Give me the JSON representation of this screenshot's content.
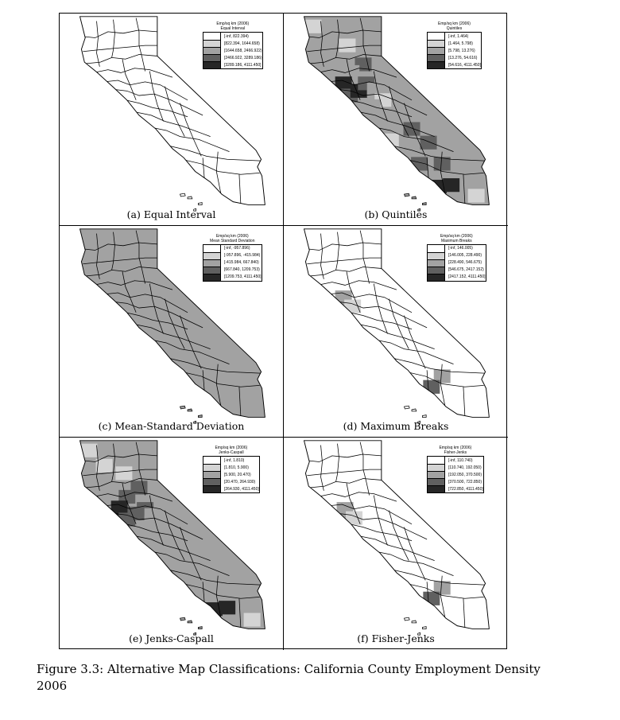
{
  "figure_caption": "Figure 3.3: Alternative Map Classifications: California County Employment Density 2006",
  "legend_title": "Emp/sq km (2006)",
  "colors": [
    "#ffffff",
    "#d4d4d4",
    "#a2a2a2",
    "#606060",
    "#262626"
  ],
  "panels": [
    {
      "caption": "(a) Equal Interval",
      "legend_subtitle": "Equal Interval",
      "legend_title": "Emp/sq km (2006)",
      "classes": [
        "[-inf, 822.394)",
        "[822.394, 1644.658)",
        "[1644.658, 2466.922)",
        "[2466.922, 3289.186)",
        "[3289.186, 4111.450]"
      ],
      "map_shading": "nearly all counties in lowest class"
    },
    {
      "caption": "(b) Quintiles",
      "legend_subtitle": "Quintiles",
      "legend_title": "Emp/sq km (2006)",
      "classes": [
        "[-inf, 1.464)",
        "[1.464, 5.798)",
        "[5.798, 13.276)",
        "[13.276, 54.616)",
        "[54.616, 4111.450]"
      ],
      "map_shading": "counties spread across all five classes"
    },
    {
      "caption": "(c) Mean-Standard Deviation",
      "legend_subtitle": "Mean Standard Deviation",
      "legend_title": "Emp/sq km (2006)",
      "classes": [
        "[-inf, -957.896)",
        "[-957.896, -415.984)",
        "[-415.984, 667.840)",
        "[667.840, 1209.753)",
        "[1209.753, 4111.450]"
      ],
      "map_shading": "most counties in middle class"
    },
    {
      "caption": "(d) Maximum Breaks",
      "legend_subtitle": "Maximum Breaks",
      "legend_title": "Emp/sq km (2006)",
      "classes": [
        "[-inf, 146.005)",
        "[146.005, 228.490)",
        "[228.490, 546.675)",
        "[546.675, 2417.152)",
        "[2417.152, 4111.450]"
      ],
      "map_shading": "mostly lowest class, a few Bay Area and southern counties shaded"
    },
    {
      "caption": "(e) Jenks-Caspall",
      "legend_subtitle": "Jenks-Caspall",
      "legend_title": "Emp/sq km (2006)",
      "classes": [
        "[-inf, 1.810)",
        "[1.810, 5.900)",
        "[5.900, 20.470)",
        "[20.470, 264.930)",
        "[264.930, 4111.450]"
      ],
      "map_shading": "counties spread across classes"
    },
    {
      "caption": "(f) Fisher-Jenks",
      "legend_subtitle": "Fisher-Jenks",
      "legend_title": "Emp/sq km (2006)",
      "classes": [
        "[-inf, 110.740)",
        "[110.740, 192.050)",
        "[192.050, 370.500)",
        "[370.500, 722.850)",
        "[722.850, 4111.450]"
      ],
      "map_shading": "mostly lowest class, a few Bay Area and southern counties shaded"
    }
  ]
}
